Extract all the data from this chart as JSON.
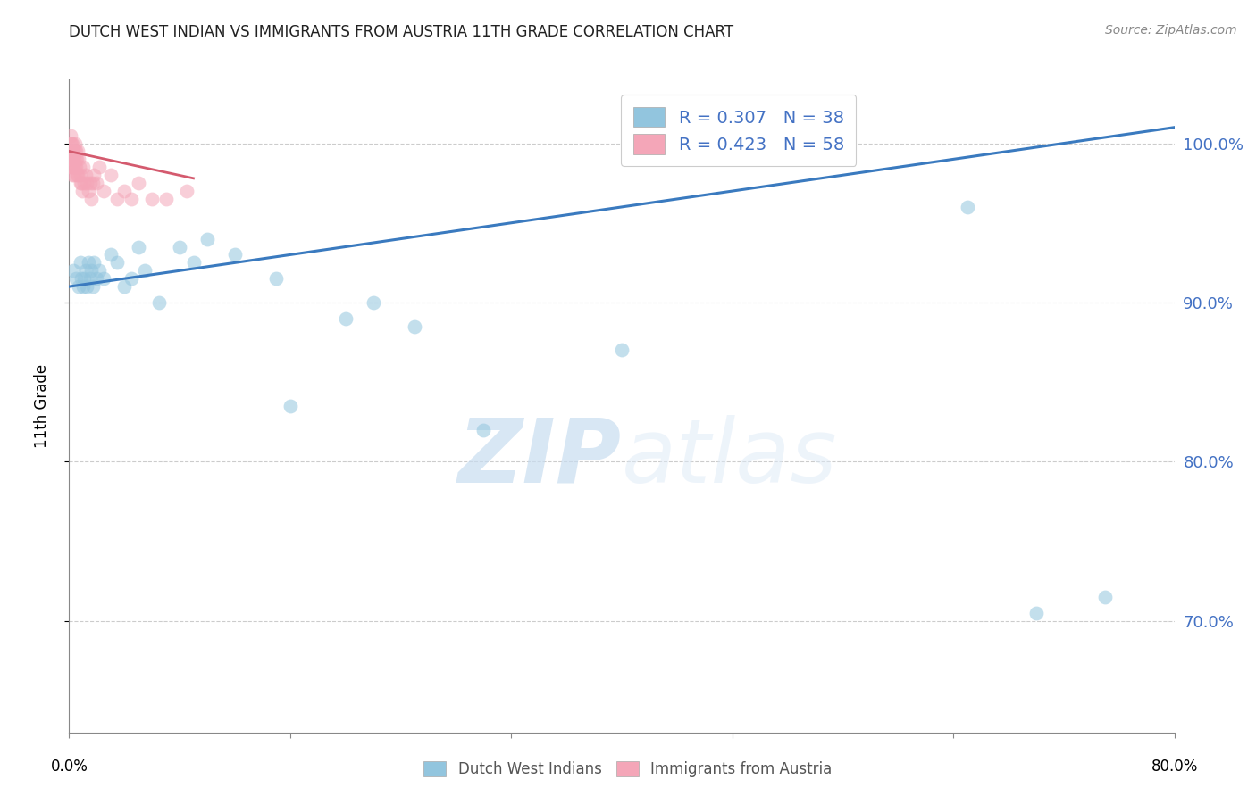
{
  "title": "DUTCH WEST INDIAN VS IMMIGRANTS FROM AUSTRIA 11TH GRADE CORRELATION CHART",
  "source": "Source: ZipAtlas.com",
  "ylabel": "11th Grade",
  "yticks": [
    70.0,
    80.0,
    90.0,
    100.0
  ],
  "xlim": [
    0.0,
    80.0
  ],
  "ylim": [
    63.0,
    104.0
  ],
  "blue_R": 0.307,
  "blue_N": 38,
  "pink_R": 0.423,
  "pink_N": 58,
  "blue_label": "Dutch West Indians",
  "pink_label": "Immigrants from Austria",
  "blue_color": "#92c5de",
  "pink_color": "#f4a6b8",
  "blue_line_color": "#3a7abf",
  "pink_line_color": "#d45a6e",
  "watermark_zip": "ZIP",
  "watermark_atlas": "atlas",
  "background_color": "#ffffff",
  "blue_x": [
    0.3,
    0.5,
    0.7,
    0.8,
    0.9,
    1.0,
    1.1,
    1.2,
    1.3,
    1.4,
    1.5,
    1.6,
    1.7,
    1.8,
    2.0,
    2.2,
    2.5,
    3.0,
    3.5,
    4.0,
    4.5,
    5.0,
    5.5,
    6.5,
    8.0,
    9.0,
    10.0,
    12.0,
    15.0,
    16.0,
    20.0,
    22.0,
    25.0,
    30.0,
    40.0,
    65.0,
    70.0,
    75.0
  ],
  "blue_y": [
    92.0,
    91.5,
    91.0,
    92.5,
    91.5,
    91.0,
    91.5,
    92.0,
    91.0,
    92.5,
    91.5,
    92.0,
    91.0,
    92.5,
    91.5,
    92.0,
    91.5,
    93.0,
    92.5,
    91.0,
    91.5,
    93.5,
    92.0,
    90.0,
    93.5,
    92.5,
    94.0,
    93.0,
    91.5,
    83.5,
    89.0,
    90.0,
    88.5,
    82.0,
    87.0,
    96.0,
    70.5,
    71.5
  ],
  "pink_x": [
    0.05,
    0.07,
    0.08,
    0.09,
    0.1,
    0.12,
    0.13,
    0.14,
    0.15,
    0.17,
    0.18,
    0.19,
    0.2,
    0.22,
    0.24,
    0.25,
    0.27,
    0.28,
    0.3,
    0.32,
    0.35,
    0.37,
    0.4,
    0.42,
    0.45,
    0.48,
    0.5,
    0.52,
    0.55,
    0.58,
    0.6,
    0.65,
    0.7,
    0.75,
    0.8,
    0.85,
    0.9,
    0.95,
    1.0,
    1.1,
    1.2,
    1.3,
    1.4,
    1.5,
    1.6,
    1.7,
    1.8,
    2.0,
    2.2,
    2.5,
    3.0,
    3.5,
    4.0,
    4.5,
    5.0,
    6.0,
    7.0,
    8.5
  ],
  "pink_y": [
    98.5,
    99.0,
    99.5,
    100.0,
    99.5,
    99.0,
    100.5,
    99.0,
    99.5,
    100.0,
    98.5,
    99.0,
    99.5,
    98.0,
    99.0,
    100.0,
    99.5,
    98.5,
    99.0,
    99.5,
    98.0,
    99.0,
    99.5,
    100.0,
    98.5,
    99.5,
    99.0,
    98.5,
    99.0,
    98.0,
    99.5,
    98.0,
    99.0,
    98.5,
    97.5,
    98.0,
    97.5,
    97.0,
    98.5,
    97.5,
    98.0,
    97.5,
    97.0,
    97.5,
    96.5,
    97.5,
    98.0,
    97.5,
    98.5,
    97.0,
    98.0,
    96.5,
    97.0,
    96.5,
    97.5,
    96.5,
    96.5,
    97.0
  ],
  "blue_trendline_x": [
    0.0,
    80.0
  ],
  "blue_trendline_y": [
    91.0,
    101.0
  ],
  "pink_trendline_x": [
    0.0,
    9.0
  ],
  "pink_trendline_y": [
    99.5,
    97.8
  ]
}
